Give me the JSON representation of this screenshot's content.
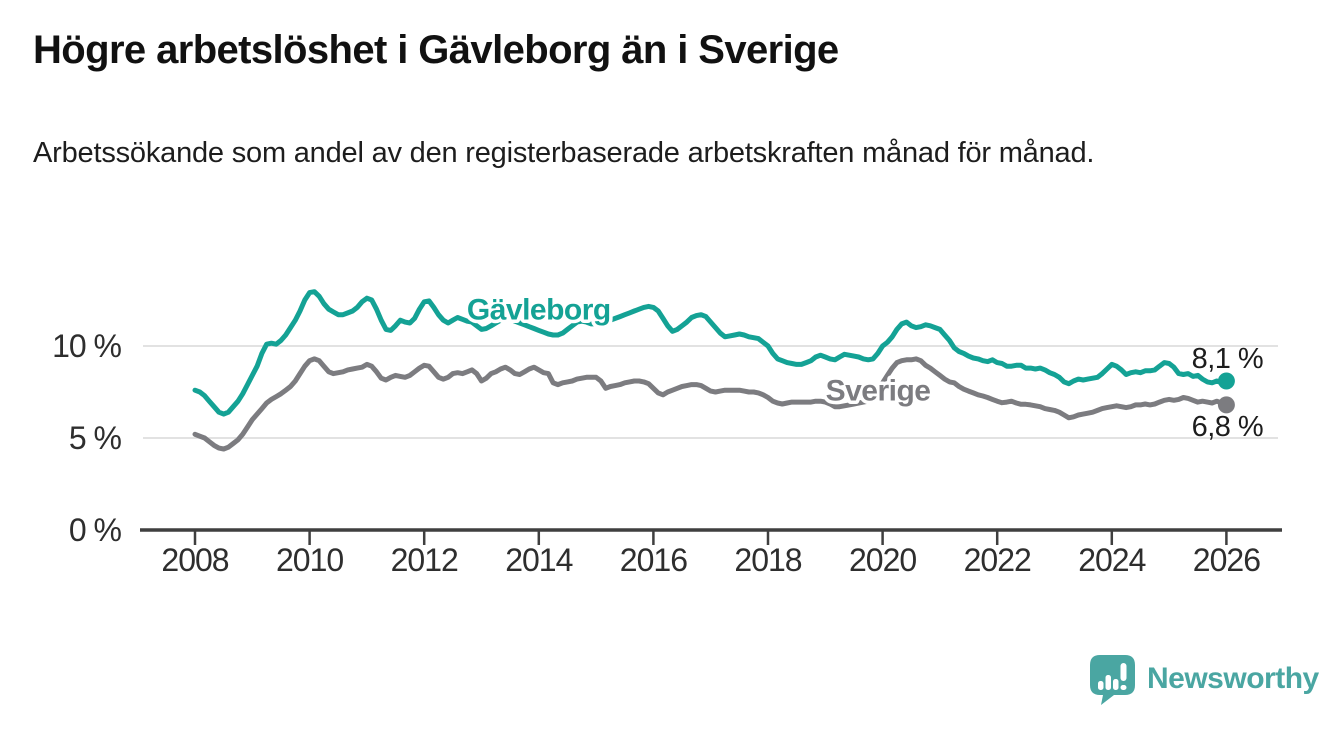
{
  "header": {
    "title": "Högre arbetslöshet i Gävleborg än i Sverige",
    "subtitle": "Arbetssökande som andel av den registerbaserade arbetskraften månad för månad."
  },
  "footer": {
    "logo_text": "Newsworthy"
  },
  "palette": {
    "teal_series": "#14a295",
    "gray_series": "#7c7c80",
    "grid": "#d8d8d8",
    "axis": "#3f3f3f",
    "axis_label": "#2e2e2e",
    "text": "#111111",
    "end_label_text": "#1d1d1d",
    "logo_teal": "#4aa6a2",
    "background": "#ffffff"
  },
  "chart_data": {
    "type": "line",
    "title": "Högre arbetslöshet i Gävleborg än i Sverige",
    "subtitle": "Arbetssökande som andel av den registerbaserade arbetskraften månad för månad.",
    "unit": "%",
    "x_start_year": 2008,
    "points_per_year": 12,
    "xlim": [
      2007.1,
      2026.95
    ],
    "ylim": [
      0,
      13.6
    ],
    "grid": "horizontal",
    "x_ticks": [
      2008,
      2010,
      2012,
      2014,
      2016,
      2018,
      2020,
      2022,
      2024,
      2026
    ],
    "x_tick_labels": [
      "2008",
      "2010",
      "2012",
      "2014",
      "2016",
      "2018",
      "2020",
      "2022",
      "2024",
      "2026"
    ],
    "y_ticks": [
      {
        "value": 0,
        "label": "0 %"
      },
      {
        "value": 5,
        "label": "5 %"
      },
      {
        "value": 10,
        "label": "10 %"
      }
    ],
    "series": [
      {
        "name": "Gävleborg",
        "color": "#14a295",
        "inline_label": "Gävleborg",
        "inline_label_pos": {
          "year": 2014.0,
          "value": 11.95
        },
        "end_label": "8,1 %",
        "end_value": 8.1,
        "values": [
          7.6,
          7.5,
          7.3,
          7.0,
          6.7,
          6.4,
          6.3,
          6.4,
          6.7,
          7.0,
          7.4,
          7.9,
          8.4,
          8.9,
          9.6,
          10.1,
          10.15,
          10.1,
          10.3,
          10.6,
          11.0,
          11.4,
          11.9,
          12.5,
          12.9,
          12.95,
          12.7,
          12.3,
          12.0,
          11.85,
          11.7,
          11.7,
          11.8,
          11.9,
          12.1,
          12.4,
          12.6,
          12.5,
          12.0,
          11.4,
          10.9,
          10.85,
          11.1,
          11.4,
          11.3,
          11.25,
          11.5,
          12.0,
          12.4,
          12.45,
          12.1,
          11.7,
          11.4,
          11.25,
          11.4,
          11.55,
          11.45,
          11.35,
          11.3,
          11.1,
          10.9,
          10.95,
          11.1,
          11.25,
          11.4,
          11.5,
          11.45,
          11.35,
          11.25,
          11.15,
          11.05,
          10.95,
          10.85,
          10.75,
          10.65,
          10.6,
          10.6,
          10.7,
          10.9,
          11.1,
          11.3,
          11.35,
          11.3,
          11.2,
          11.2,
          11.25,
          11.3,
          11.4,
          11.5,
          11.6,
          11.7,
          11.8,
          11.9,
          12.0,
          12.1,
          12.15,
          12.1,
          11.9,
          11.5,
          11.1,
          10.8,
          10.9,
          11.1,
          11.3,
          11.55,
          11.65,
          11.7,
          11.6,
          11.3,
          11.0,
          10.7,
          10.5,
          10.55,
          10.6,
          10.65,
          10.6,
          10.5,
          10.45,
          10.4,
          10.2,
          10.0,
          9.6,
          9.3,
          9.2,
          9.1,
          9.05,
          9.0,
          9.0,
          9.1,
          9.2,
          9.4,
          9.5,
          9.4,
          9.3,
          9.25,
          9.4,
          9.55,
          9.5,
          9.45,
          9.4,
          9.3,
          9.25,
          9.3,
          9.6,
          10.0,
          10.2,
          10.5,
          10.9,
          11.2,
          11.3,
          11.1,
          11.0,
          11.05,
          11.15,
          11.1,
          11.0,
          10.9,
          10.6,
          10.3,
          9.9,
          9.7,
          9.6,
          9.45,
          9.35,
          9.3,
          9.2,
          9.15,
          9.25,
          9.1,
          9.05,
          8.9,
          8.9,
          8.95,
          8.95,
          8.8,
          8.8,
          8.75,
          8.8,
          8.7,
          8.55,
          8.45,
          8.3,
          8.05,
          7.95,
          8.1,
          8.2,
          8.15,
          8.2,
          8.25,
          8.3,
          8.5,
          8.75,
          9.0,
          8.9,
          8.7,
          8.45,
          8.55,
          8.6,
          8.55,
          8.65,
          8.65,
          8.7,
          8.9,
          9.1,
          9.05,
          8.85,
          8.5,
          8.45,
          8.5,
          8.35,
          8.4,
          8.2,
          8.05,
          8.0,
          8.1,
          8.0,
          8.1
        ]
      },
      {
        "name": "Sverige",
        "color": "#7c7c80",
        "inline_label": "Sverige",
        "inline_label_pos": {
          "year": 2019.92,
          "value": 7.55
        },
        "end_label": "6,8 %",
        "end_value": 6.8,
        "values": [
          5.2,
          5.1,
          5.0,
          4.8,
          4.6,
          4.45,
          4.4,
          4.5,
          4.7,
          4.9,
          5.2,
          5.6,
          6.0,
          6.3,
          6.6,
          6.9,
          7.1,
          7.25,
          7.4,
          7.6,
          7.8,
          8.1,
          8.5,
          8.9,
          9.2,
          9.3,
          9.2,
          8.9,
          8.6,
          8.5,
          8.55,
          8.6,
          8.7,
          8.75,
          8.8,
          8.85,
          9.0,
          8.9,
          8.6,
          8.25,
          8.15,
          8.3,
          8.4,
          8.35,
          8.3,
          8.4,
          8.6,
          8.8,
          8.95,
          8.9,
          8.6,
          8.3,
          8.2,
          8.3,
          8.5,
          8.55,
          8.5,
          8.6,
          8.7,
          8.5,
          8.1,
          8.25,
          8.5,
          8.6,
          8.75,
          8.85,
          8.7,
          8.5,
          8.45,
          8.6,
          8.75,
          8.85,
          8.7,
          8.55,
          8.5,
          8.0,
          7.9,
          8.0,
          8.05,
          8.1,
          8.2,
          8.25,
          8.3,
          8.3,
          8.3,
          8.1,
          7.7,
          7.8,
          7.85,
          7.9,
          8.0,
          8.05,
          8.1,
          8.1,
          8.05,
          7.95,
          7.7,
          7.45,
          7.35,
          7.5,
          7.6,
          7.7,
          7.8,
          7.85,
          7.9,
          7.9,
          7.85,
          7.7,
          7.55,
          7.5,
          7.55,
          7.6,
          7.6,
          7.6,
          7.6,
          7.55,
          7.5,
          7.5,
          7.45,
          7.35,
          7.2,
          7.0,
          6.9,
          6.85,
          6.9,
          6.95,
          6.95,
          6.95,
          6.95,
          6.95,
          7.0,
          7.0,
          6.95,
          6.85,
          6.7,
          6.7,
          6.75,
          6.8,
          6.85,
          6.9,
          6.95,
          7.0,
          7.1,
          7.5,
          8.0,
          8.4,
          8.8,
          9.1,
          9.2,
          9.25,
          9.25,
          9.3,
          9.2,
          8.95,
          8.8,
          8.6,
          8.4,
          8.2,
          8.05,
          8.0,
          7.8,
          7.65,
          7.55,
          7.45,
          7.35,
          7.28,
          7.2,
          7.1,
          7.0,
          6.92,
          6.95,
          7.0,
          6.9,
          6.83,
          6.83,
          6.8,
          6.75,
          6.7,
          6.6,
          6.55,
          6.5,
          6.4,
          6.25,
          6.1,
          6.15,
          6.25,
          6.3,
          6.35,
          6.4,
          6.5,
          6.6,
          6.65,
          6.7,
          6.75,
          6.7,
          6.65,
          6.7,
          6.8,
          6.8,
          6.85,
          6.8,
          6.85,
          6.95,
          7.05,
          7.1,
          7.05,
          7.1,
          7.2,
          7.15,
          7.05,
          6.95,
          7.0,
          6.95,
          6.9,
          7.0,
          6.9,
          6.8
        ]
      }
    ],
    "legend_position": "inline-labels"
  }
}
